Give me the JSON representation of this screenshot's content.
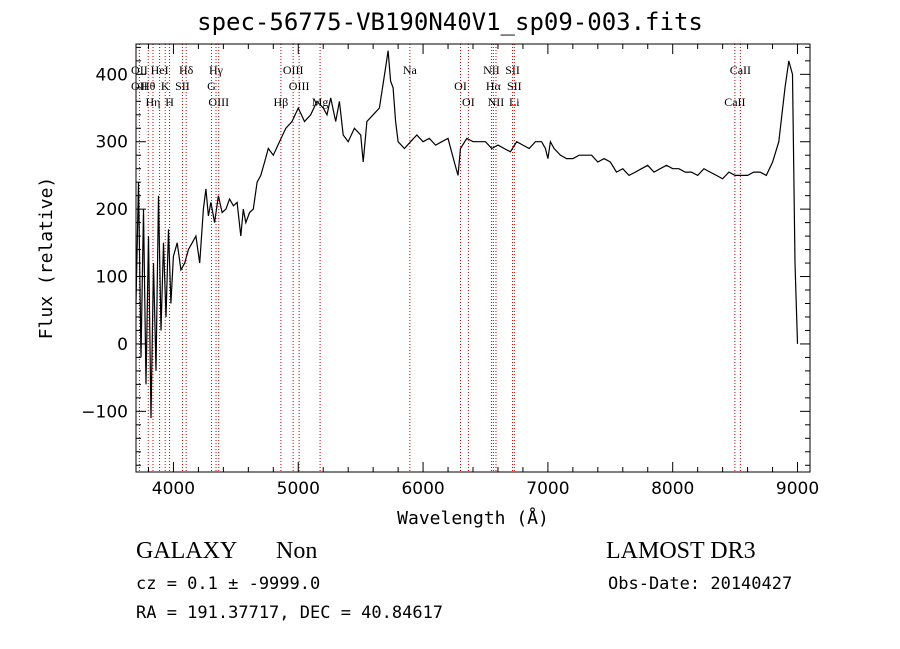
{
  "chart_data": {
    "type": "line",
    "title": "spec-56775-VB190N40V1_sp09-003.fits",
    "xlabel": "Wavelength (Å)",
    "ylabel": "Flux (relative)",
    "xlim": [
      3700,
      9100
    ],
    "ylim": [
      -190,
      445
    ],
    "x_ticks": [
      4000,
      5000,
      6000,
      7000,
      8000,
      9000
    ],
    "y_ticks": [
      -100,
      0,
      100,
      200,
      300,
      400
    ],
    "x_tick_labels": [
      "4000",
      "5000",
      "6000",
      "7000",
      "8000",
      "9000"
    ],
    "y_tick_labels": [
      "−100",
      "0",
      "100",
      "200",
      "300",
      "400"
    ],
    "series": [
      {
        "name": "spectrum",
        "x": [
          3700,
          3720,
          3740,
          3760,
          3780,
          3800,
          3820,
          3840,
          3860,
          3880,
          3900,
          3920,
          3940,
          3960,
          3980,
          4000,
          4030,
          4060,
          4090,
          4120,
          4150,
          4180,
          4210,
          4240,
          4260,
          4280,
          4300,
          4330,
          4360,
          4390,
          4420,
          4450,
          4480,
          4510,
          4540,
          4560,
          4580,
          4610,
          4640,
          4670,
          4700,
          4730,
          4760,
          4800,
          4850,
          4900,
          4950,
          5000,
          5050,
          5100,
          5150,
          5200,
          5230,
          5260,
          5300,
          5330,
          5360,
          5400,
          5450,
          5500,
          5520,
          5550,
          5600,
          5650,
          5700,
          5720,
          5740,
          5760,
          5780,
          5800,
          5850,
          5900,
          5950,
          6000,
          6050,
          6100,
          6150,
          6200,
          6250,
          6280,
          6300,
          6350,
          6400,
          6450,
          6500,
          6550,
          6600,
          6650,
          6700,
          6750,
          6800,
          6850,
          6900,
          6950,
          6980,
          7000,
          7020,
          7050,
          7100,
          7150,
          7200,
          7250,
          7300,
          7350,
          7400,
          7450,
          7500,
          7550,
          7600,
          7650,
          7700,
          7750,
          7800,
          7850,
          7900,
          7950,
          8000,
          8050,
          8100,
          8150,
          8200,
          8250,
          8300,
          8350,
          8400,
          8450,
          8500,
          8550,
          8600,
          8650,
          8700,
          8750,
          8800,
          8850,
          8900,
          8930,
          8960,
          8980,
          9000
        ],
        "values": [
          60,
          240,
          -20,
          200,
          -60,
          160,
          -110,
          120,
          -40,
          220,
          20,
          150,
          40,
          170,
          60,
          130,
          150,
          110,
          120,
          140,
          150,
          160,
          120,
          200,
          230,
          190,
          210,
          180,
          220,
          195,
          200,
          215,
          205,
          210,
          160,
          200,
          180,
          195,
          200,
          240,
          250,
          270,
          290,
          280,
          300,
          320,
          330,
          350,
          330,
          340,
          360,
          350,
          340,
          365,
          330,
          360,
          310,
          300,
          320,
          310,
          270,
          330,
          340,
          350,
          410,
          435,
          390,
          380,
          330,
          300,
          290,
          300,
          310,
          300,
          305,
          295,
          300,
          305,
          270,
          250,
          290,
          305,
          300,
          300,
          300,
          290,
          295,
          290,
          285,
          300,
          295,
          290,
          300,
          300,
          290,
          275,
          300,
          290,
          280,
          275,
          275,
          280,
          280,
          280,
          270,
          275,
          270,
          255,
          260,
          250,
          255,
          260,
          265,
          255,
          260,
          265,
          260,
          260,
          255,
          255,
          250,
          260,
          255,
          250,
          245,
          255,
          250,
          250,
          250,
          255,
          255,
          250,
          270,
          300,
          380,
          420,
          400,
          120,
          0
        ]
      }
    ],
    "lines": [
      {
        "labels": [
          "OII",
          "OII"
        ],
        "x": 3727
      },
      {
        "labels": [
          "Hθ"
        ],
        "x": 3798
      },
      {
        "labels": [
          "Hη"
        ],
        "x": 3836
      },
      {
        "labels": [
          "HeI"
        ],
        "x": 3889
      },
      {
        "labels": [
          "K"
        ],
        "x": 3934
      },
      {
        "labels": [
          "H"
        ],
        "x": 3969
      },
      {
        "labels": [
          "Hδ"
        ],
        "x": 4102
      },
      {
        "labels": [
          "SII"
        ],
        "x": 4072
      },
      {
        "labels": [
          "OIII"
        ],
        "x": 4363
      },
      {
        "labels": [
          "Hγ"
        ],
        "x": 4341
      },
      {
        "labels": [
          "G"
        ],
        "x": 4305
      },
      {
        "labels": [
          "Hβ"
        ],
        "x": 4861
      },
      {
        "labels": [
          "OIII"
        ],
        "x": 4959
      },
      {
        "labels": [
          "OIII"
        ],
        "x": 5007
      },
      {
        "labels": [
          "Mg"
        ],
        "x": 5175
      },
      {
        "labels": [
          "Na"
        ],
        "x": 5894
      },
      {
        "labels": [
          "OI"
        ],
        "x": 6300
      },
      {
        "labels": [
          "OI"
        ],
        "x": 6363
      },
      {
        "labels": [
          "NII"
        ],
        "x": 6548
      },
      {
        "labels": [
          "Hα"
        ],
        "x": 6563
      },
      {
        "labels": [
          "NII"
        ],
        "x": 6584
      },
      {
        "labels": [
          "SII"
        ],
        "x": 6717
      },
      {
        "labels": [
          "SII",
          "Li"
        ],
        "x": 6731
      },
      {
        "labels": [
          "CaII"
        ],
        "x": 8498
      },
      {
        "labels": [
          "CaII"
        ],
        "x": 8542
      }
    ]
  },
  "info": {
    "class": "GALAXY",
    "subclass": "Non",
    "survey": "LAMOST DR3",
    "cz_line": "cz = 0.1 ± -9999.0",
    "obs_date": "Obs-Date: 20140427",
    "radec": "RA = 191.37717, DEC =  40.84617"
  },
  "colors": {
    "spectrum": "#000000",
    "lines": "#cc0000",
    "axes": "#000000"
  }
}
